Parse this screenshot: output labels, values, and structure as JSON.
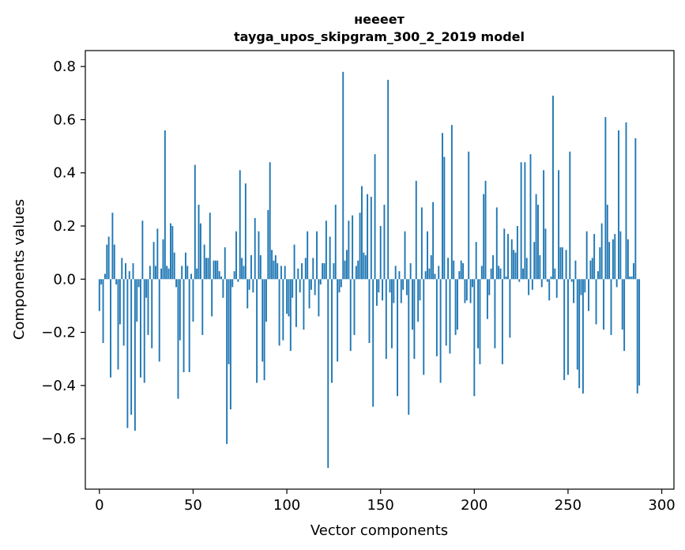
{
  "chart_data": {
    "type": "bar",
    "title_line1": "неееет",
    "title_line2": "tayga_upos_skipgram_300_2_2019 model",
    "xlabel": "Vector components",
    "ylabel": "Components values",
    "xlim": [
      -7.5,
      306.5
    ],
    "ylim": [
      -0.79,
      0.86
    ],
    "xticks": [
      0,
      50,
      100,
      150,
      200,
      250,
      300
    ],
    "xtick_labels": [
      "0",
      "50",
      "100",
      "150",
      "200",
      "250",
      "300"
    ],
    "yticks": [
      -0.6,
      -0.4,
      -0.2,
      0.0,
      0.2,
      0.4,
      0.6,
      0.8
    ],
    "ytick_labels": [
      "−0.6",
      "−0.4",
      "−0.2",
      "0.0",
      "0.2",
      "0.4",
      "0.6",
      "0.8"
    ],
    "bar_color": "#1f77b4",
    "values": [
      -0.12,
      -0.02,
      -0.24,
      0.02,
      0.13,
      0.16,
      -0.37,
      0.25,
      0.13,
      -0.02,
      -0.34,
      -0.17,
      0.08,
      -0.25,
      0.06,
      -0.56,
      0.03,
      -0.51,
      0.06,
      -0.57,
      -0.16,
      -0.03,
      -0.37,
      0.22,
      -0.39,
      -0.07,
      -0.21,
      0.05,
      -0.26,
      0.14,
      0.05,
      0.19,
      -0.31,
      0.04,
      0.15,
      0.56,
      0.05,
      0.04,
      0.21,
      0.2,
      0.1,
      -0.03,
      -0.45,
      -0.23,
      0.05,
      -0.35,
      0.1,
      0.05,
      -0.35,
      0.02,
      -0.16,
      0.43,
      0.04,
      0.28,
      0.21,
      -0.21,
      0.13,
      0.08,
      0.08,
      0.25,
      -0.14,
      0.07,
      0.07,
      0.07,
      0.03,
      0.01,
      -0.07,
      0.12,
      -0.62,
      -0.32,
      -0.49,
      -0.03,
      0.03,
      0.18,
      -0.01,
      0.41,
      0.08,
      0.05,
      0.36,
      -0.11,
      -0.04,
      0.09,
      -0.05,
      0.23,
      -0.39,
      0.18,
      0.09,
      -0.31,
      -0.38,
      -0.16,
      0.26,
      0.44,
      0.11,
      0.07,
      0.09,
      0.06,
      -0.25,
      0.05,
      -0.23,
      0.05,
      -0.13,
      -0.14,
      -0.27,
      -0.07,
      0.13,
      -0.18,
      0.04,
      -0.05,
      0.06,
      -0.19,
      0.08,
      0.18,
      -0.11,
      -0.04,
      0.08,
      -0.06,
      0.18,
      -0.14,
      -0.02,
      0.06,
      0.06,
      0.22,
      -0.71,
      0.16,
      -0.39,
      0.06,
      0.28,
      -0.31,
      -0.05,
      -0.03,
      0.78,
      0.07,
      0.11,
      0.22,
      -0.27,
      0.24,
      -0.21,
      0.05,
      0.07,
      0.25,
      0.35,
      0.1,
      0.09,
      0.32,
      -0.24,
      0.31,
      -0.48,
      0.47,
      -0.1,
      -0.05,
      0.2,
      -0.08,
      0.28,
      -0.3,
      0.75,
      -0.05,
      -0.26,
      -0.09,
      0.05,
      -0.44,
      0.03,
      -0.09,
      -0.04,
      0.18,
      -0.06,
      -0.51,
      0.06,
      -0.19,
      -0.3,
      0.37,
      -0.16,
      -0.08,
      0.27,
      -0.36,
      0.03,
      0.18,
      0.04,
      0.09,
      0.29,
      0.02,
      -0.29,
      0.05,
      -0.39,
      0.55,
      0.46,
      -0.25,
      0.08,
      -0.28,
      0.58,
      0.07,
      -0.21,
      -0.19,
      0.03,
      0.07,
      0.06,
      -0.09,
      -0.08,
      0.48,
      -0.09,
      -0.03,
      -0.44,
      0.14,
      -0.26,
      -0.32,
      0.05,
      0.32,
      0.37,
      -0.15,
      -0.06,
      0.04,
      0.09,
      -0.26,
      0.27,
      0.05,
      0.04,
      -0.32,
      0.19,
      0.01,
      0.17,
      -0.22,
      0.15,
      0.11,
      0.1,
      0.2,
      -0.01,
      0.44,
      0.04,
      0.44,
      0.08,
      -0.06,
      0.47,
      -0.04,
      0.14,
      0.32,
      0.28,
      0.09,
      -0.03,
      0.41,
      0.19,
      -0.01,
      -0.08,
      0.01,
      0.69,
      0.04,
      -0.07,
      0.41,
      0.12,
      0.12,
      -0.38,
      0.11,
      -0.36,
      0.48,
      -0.01,
      -0.09,
      0.07,
      -0.34,
      -0.41,
      -0.06,
      -0.43,
      -0.05,
      0.18,
      -0.12,
      0.07,
      0.08,
      0.17,
      -0.17,
      0.03,
      0.12,
      0.21,
      -0.19,
      0.61,
      0.28,
      0.14,
      -0.21,
      0.15,
      0.17,
      -0.03,
      0.56,
      0.18,
      -0.19,
      -0.27,
      0.59,
      0.15,
      0.01,
      0.01,
      0.06,
      0.53,
      -0.43,
      -0.4
    ],
    "grid": false,
    "legend": "none"
  }
}
